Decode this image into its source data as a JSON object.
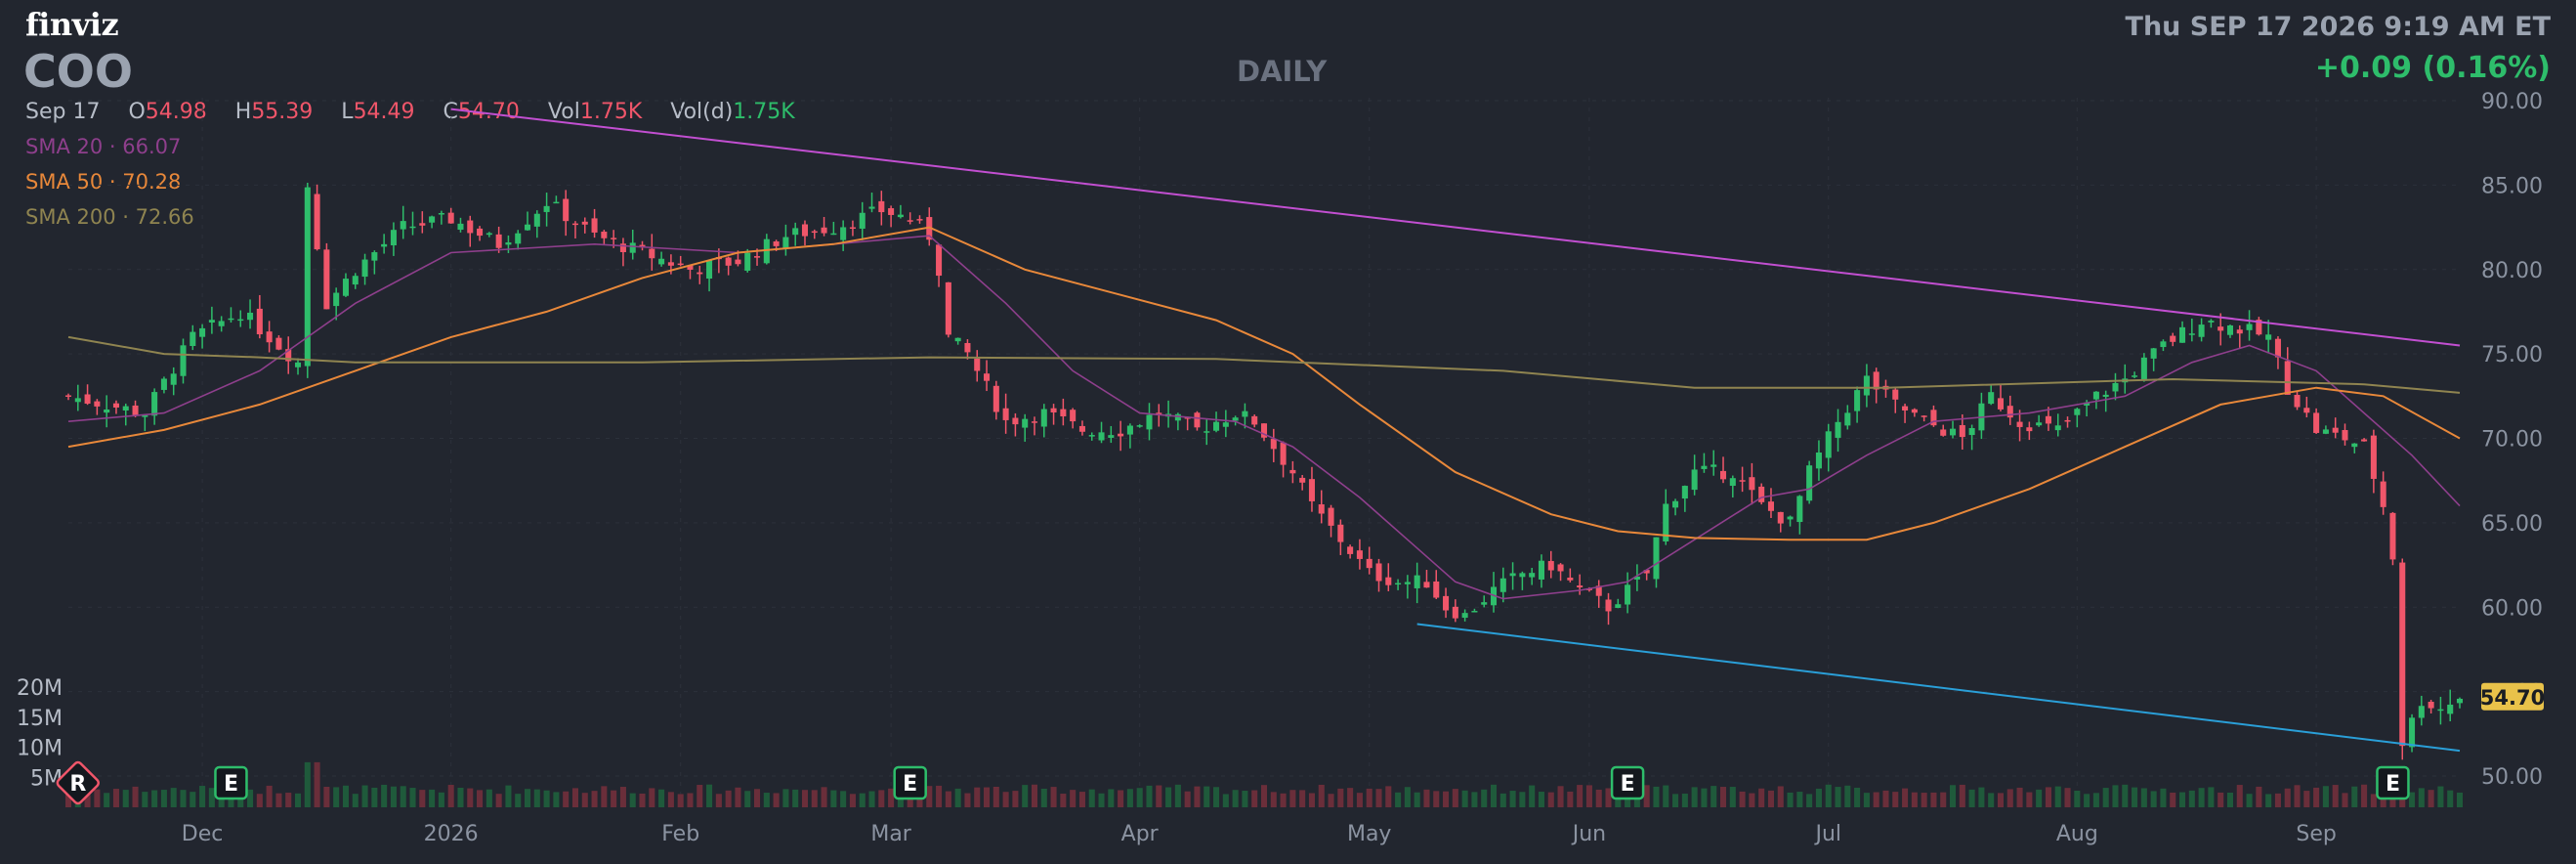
{
  "header": {
    "logo": "finviz",
    "ticker": "COO",
    "timeframe": "DAILY",
    "datetime": "Thu SEP 17 2026 9:19 AM ET",
    "change": "+0.09 (0.16%)"
  },
  "ohlc": {
    "date": "Sep 17",
    "o_label": "O",
    "o": "54.98",
    "h_label": "H",
    "h": "55.39",
    "l_label": "L",
    "l": "54.49",
    "c_label": "C",
    "c": "54.70",
    "vol_label": "Vol",
    "vol": "1.75K",
    "vold_label": "Vol(d)",
    "vold": "1.75K"
  },
  "sma": [
    {
      "label": "SMA 20",
      "value": "66.07",
      "color": "#8e3f8c"
    },
    {
      "label": "SMA 50",
      "value": "70.28",
      "color": "#e8883a"
    },
    {
      "label": "SMA 200",
      "value": "72.66",
      "color": "#8f8450"
    }
  ],
  "colors": {
    "up": "#2ebd6b",
    "down": "#f0566a",
    "trend_upper": "#c24fd1",
    "trend_lower": "#2a9fd8",
    "price_tag_bg": "#e9c24a",
    "badge_earnings": "#2ebd6b",
    "badge_r": "#f0566a"
  },
  "chart_data": {
    "type": "candlestick",
    "price_axis": {
      "ticks": [
        "90.00",
        "85.00",
        "80.00",
        "75.00",
        "70.00",
        "65.00",
        "60.00",
        "55.00",
        "50.00"
      ],
      "range": [
        50,
        90
      ]
    },
    "volume_axis": {
      "ticks": [
        "20M",
        "15M",
        "10M",
        "5M"
      ],
      "range": [
        0,
        20000000
      ]
    },
    "x_labels": [
      "Dec",
      "2026",
      "Feb",
      "Mar",
      "Apr",
      "May",
      "Jun",
      "Jul",
      "Aug",
      "Sep"
    ],
    "last_price": "54.70",
    "anchors": [
      {
        "d": 0,
        "p": 72.5
      },
      {
        "d": 8,
        "p": 71.5
      },
      {
        "d": 13,
        "p": 76
      },
      {
        "d": 18,
        "p": 77.5
      },
      {
        "d": 22,
        "p": 75.5
      },
      {
        "d": 24,
        "p": 74.5
      },
      {
        "d": 25,
        "p": 85
      },
      {
        "d": 27,
        "p": 78
      },
      {
        "d": 30,
        "p": 80
      },
      {
        "d": 35,
        "p": 82.5
      },
      {
        "d": 40,
        "p": 83
      },
      {
        "d": 45,
        "p": 81.5
      },
      {
        "d": 50,
        "p": 84
      },
      {
        "d": 55,
        "p": 82
      },
      {
        "d": 60,
        "p": 81
      },
      {
        "d": 65,
        "p": 80
      },
      {
        "d": 70,
        "p": 80.5
      },
      {
        "d": 75,
        "p": 82
      },
      {
        "d": 80,
        "p": 82.5
      },
      {
        "d": 85,
        "p": 83.5
      },
      {
        "d": 88,
        "p": 83
      },
      {
        "d": 90,
        "p": 82
      },
      {
        "d": 91,
        "p": 80
      },
      {
        "d": 92,
        "p": 76
      },
      {
        "d": 94,
        "p": 75
      },
      {
        "d": 96,
        "p": 73
      },
      {
        "d": 98,
        "p": 71
      },
      {
        "d": 102,
        "p": 71.5
      },
      {
        "d": 106,
        "p": 70.5
      },
      {
        "d": 110,
        "p": 70.5
      },
      {
        "d": 114,
        "p": 71.5
      },
      {
        "d": 118,
        "p": 70.5
      },
      {
        "d": 122,
        "p": 71.5
      },
      {
        "d": 124,
        "p": 71
      },
      {
        "d": 128,
        "p": 68
      },
      {
        "d": 130,
        "p": 66
      },
      {
        "d": 133,
        "p": 64
      },
      {
        "d": 136,
        "p": 62
      },
      {
        "d": 139,
        "p": 61.5
      },
      {
        "d": 142,
        "p": 61.5
      },
      {
        "d": 144,
        "p": 60
      },
      {
        "d": 146,
        "p": 59.5
      },
      {
        "d": 149,
        "p": 61
      },
      {
        "d": 152,
        "p": 62
      },
      {
        "d": 155,
        "p": 62.5
      },
      {
        "d": 158,
        "p": 61
      },
      {
        "d": 161,
        "p": 60
      },
      {
        "d": 163,
        "p": 61
      },
      {
        "d": 165,
        "p": 62
      },
      {
        "d": 167,
        "p": 66
      },
      {
        "d": 170,
        "p": 68
      },
      {
        "d": 174,
        "p": 68
      },
      {
        "d": 177,
        "p": 66
      },
      {
        "d": 180,
        "p": 65
      },
      {
        "d": 182,
        "p": 68
      },
      {
        "d": 185,
        "p": 71
      },
      {
        "d": 188,
        "p": 73.5
      },
      {
        "d": 191,
        "p": 72
      },
      {
        "d": 194,
        "p": 71
      },
      {
        "d": 198,
        "p": 70
      },
      {
        "d": 201,
        "p": 72.5
      },
      {
        "d": 204,
        "p": 71
      },
      {
        "d": 208,
        "p": 70.5
      },
      {
        "d": 212,
        "p": 72.5
      },
      {
        "d": 215,
        "p": 73.5
      },
      {
        "d": 219,
        "p": 75.5
      },
      {
        "d": 223,
        "p": 77
      },
      {
        "d": 227,
        "p": 76.5
      },
      {
        "d": 230,
        "p": 76
      },
      {
        "d": 232,
        "p": 73
      },
      {
        "d": 235,
        "p": 70.5
      },
      {
        "d": 238,
        "p": 70
      },
      {
        "d": 240,
        "p": 69.5
      },
      {
        "d": 242,
        "p": 66
      },
      {
        "d": 243,
        "p": 63
      },
      {
        "d": 244,
        "p": 52
      },
      {
        "d": 246,
        "p": 54.5
      },
      {
        "d": 248,
        "p": 54
      },
      {
        "d": 250,
        "p": 54.7
      }
    ],
    "sma_series": [
      {
        "label": "SMA 20",
        "points": [
          [
            0,
            71
          ],
          [
            10,
            71.5
          ],
          [
            20,
            74
          ],
          [
            25,
            76
          ],
          [
            30,
            78
          ],
          [
            40,
            81
          ],
          [
            55,
            81.5
          ],
          [
            70,
            81
          ],
          [
            80,
            81.5
          ],
          [
            90,
            82
          ],
          [
            98,
            78
          ],
          [
            105,
            74
          ],
          [
            112,
            71.5
          ],
          [
            122,
            71
          ],
          [
            128,
            69.5
          ],
          [
            135,
            66.5
          ],
          [
            140,
            64
          ],
          [
            145,
            61.5
          ],
          [
            150,
            60.5
          ],
          [
            158,
            61
          ],
          [
            163,
            61.5
          ],
          [
            170,
            64
          ],
          [
            177,
            66.5
          ],
          [
            182,
            67
          ],
          [
            188,
            69
          ],
          [
            195,
            71
          ],
          [
            205,
            71.5
          ],
          [
            215,
            72.5
          ],
          [
            222,
            74.5
          ],
          [
            228,
            75.5
          ],
          [
            235,
            74
          ],
          [
            240,
            71.5
          ],
          [
            245,
            69
          ],
          [
            250,
            66
          ]
        ]
      },
      {
        "label": "SMA 50",
        "points": [
          [
            0,
            69.5
          ],
          [
            10,
            70.5
          ],
          [
            20,
            72
          ],
          [
            30,
            74
          ],
          [
            40,
            76
          ],
          [
            50,
            77.5
          ],
          [
            60,
            79.5
          ],
          [
            70,
            81
          ],
          [
            80,
            81.5
          ],
          [
            90,
            82.5
          ],
          [
            100,
            80
          ],
          [
            110,
            78.5
          ],
          [
            120,
            77
          ],
          [
            128,
            75
          ],
          [
            135,
            72
          ],
          [
            145,
            68
          ],
          [
            155,
            65.5
          ],
          [
            162,
            64.5
          ],
          [
            170,
            64.1
          ],
          [
            180,
            64
          ],
          [
            188,
            64
          ],
          [
            195,
            65
          ],
          [
            205,
            67
          ],
          [
            215,
            69.5
          ],
          [
            225,
            72
          ],
          [
            235,
            73
          ],
          [
            242,
            72.5
          ],
          [
            250,
            70
          ]
        ]
      },
      {
        "label": "SMA 200",
        "points": [
          [
            0,
            76
          ],
          [
            10,
            75
          ],
          [
            20,
            74.8
          ],
          [
            30,
            74.5
          ],
          [
            60,
            74.5
          ],
          [
            90,
            74.8
          ],
          [
            120,
            74.7
          ],
          [
            150,
            74
          ],
          [
            170,
            73
          ],
          [
            190,
            73
          ],
          [
            220,
            73.5
          ],
          [
            240,
            73.2
          ],
          [
            250,
            72.7
          ]
        ]
      }
    ],
    "trendlines": [
      {
        "name": "",
        "from": [
          40,
          89.5
        ],
        "to": [
          250,
          75.5
        ]
      },
      {
        "name": "",
        "from": [
          141,
          59
        ],
        "to": [
          250,
          51.5
        ]
      }
    ],
    "events": [
      {
        "label": "R",
        "day": 1
      },
      {
        "label": "E",
        "day": 17
      },
      {
        "label": "E",
        "day": 88
      },
      {
        "label": "E",
        "day": 163
      },
      {
        "label": "E",
        "day": 243
      }
    ]
  }
}
